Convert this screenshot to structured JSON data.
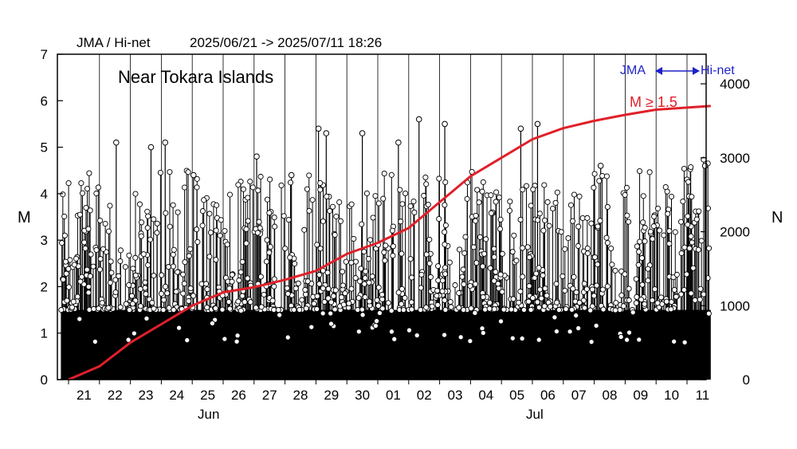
{
  "header": {
    "source": "JMA / Hi-net",
    "period": "2025/06/21 -> 2025/07/11 18:26"
  },
  "region_title": "Near Tokara Islands",
  "legend": {
    "source_left": "JMA",
    "source_right": "Hi-net",
    "cumulative_label": "M ≥ 1.5"
  },
  "colors": {
    "cumulative_line": "#e0202a",
    "source_legend": "#1e22c8",
    "events": "#000000",
    "marker_fill": "#ffffff"
  },
  "chart_data": {
    "type": "scatter",
    "xlabel_months": [
      "Jun",
      "Jul"
    ],
    "day_ticks": [
      "21",
      "22",
      "23",
      "24",
      "25",
      "26",
      "27",
      "28",
      "29",
      "30",
      "01",
      "02",
      "03",
      "04",
      "05",
      "06",
      "07",
      "08",
      "09",
      "10",
      "11"
    ],
    "x_start": "2025-06-21",
    "x_end": "2025-07-11 18:26",
    "left_axis": {
      "label": "M",
      "range": [
        0,
        7
      ],
      "ticks": [
        0,
        1,
        2,
        3,
        4,
        5,
        6,
        7
      ]
    },
    "right_axis": {
      "label": "N",
      "range": [
        0,
        4400
      ],
      "ticks": [
        0,
        1000,
        2000,
        3000,
        4000
      ]
    },
    "series": [
      {
        "name": "M ≥ 1.5",
        "axis": "right",
        "x": [
          "06/21",
          "06/22",
          "06/23",
          "06/24",
          "06/25",
          "06/26",
          "06/27",
          "06/28",
          "06/29",
          "06/30",
          "07/01",
          "07/02",
          "07/03",
          "07/04",
          "07/05",
          "07/06",
          "07/07",
          "07/08",
          "07/09",
          "07/10",
          "07/11 18:26"
        ],
        "values": [
          0,
          180,
          500,
          750,
          1000,
          1180,
          1250,
          1350,
          1470,
          1700,
          1850,
          2050,
          2400,
          2750,
          3000,
          3250,
          3400,
          3500,
          3580,
          3650,
          3700
        ]
      }
    ],
    "notable_events": [
      {
        "time": "06/22 13:00",
        "magnitude": 5.1
      },
      {
        "time": "06/23 16:00",
        "magnitude": 5.0
      },
      {
        "time": "06/24 03:00",
        "magnitude": 5.1
      },
      {
        "time": "06/25 01:00",
        "magnitude": 4.4
      },
      {
        "time": "06/27 02:00",
        "magnitude": 4.8
      },
      {
        "time": "06/28 05:00",
        "magnitude": 4.4
      },
      {
        "time": "06/29 02:00",
        "magnitude": 5.4
      },
      {
        "time": "06/29 08:00",
        "magnitude": 5.3
      },
      {
        "time": "06/30 12:00",
        "magnitude": 5.3
      },
      {
        "time": "07/01 16:00",
        "magnitude": 5.1
      },
      {
        "time": "07/02 08:00",
        "magnitude": 5.6
      },
      {
        "time": "07/03 04:00",
        "magnitude": 5.5
      },
      {
        "time": "07/05 15:00",
        "magnitude": 5.4
      },
      {
        "time": "07/06 04:00",
        "magnitude": 5.5
      },
      {
        "time": "07/08 05:00",
        "magnitude": 4.6
      },
      {
        "time": "07/11 14:00",
        "magnitude": 4.6
      }
    ]
  }
}
